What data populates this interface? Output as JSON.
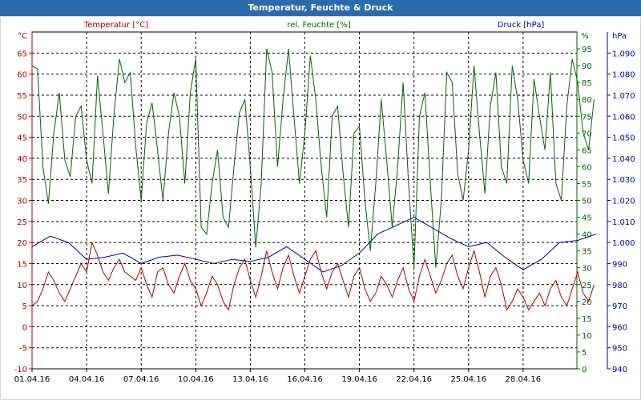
{
  "title": "Temperatur, Feuchte & Druck",
  "colors": {
    "temperature": "#b00000",
    "humidity": "#006400",
    "pressure": "#0000a0",
    "titlebar": "#2a6aad",
    "grid": "#000000"
  },
  "chart_data": {
    "type": "line",
    "x_tick_labels": [
      "01.04.16",
      "04.04.16",
      "07.04.16",
      "10.04.16",
      "13.04.16",
      "16.04.16",
      "19.04.16",
      "22.04.16",
      "25.04.16",
      "28.04.16"
    ],
    "x_range_days": [
      0,
      31
    ],
    "grid": true,
    "axes": {
      "left": {
        "label": "Temperatur [°C]",
        "unit": "°C",
        "range": [
          -10,
          70
        ],
        "ticks": [
          -10,
          -5,
          0,
          5,
          10,
          15,
          20,
          25,
          30,
          35,
          40,
          45,
          50,
          55,
          60,
          65
        ]
      },
      "mid": {
        "label": "rel. Feuchte [%]",
        "unit": "%",
        "range": [
          0,
          100
        ],
        "ticks": [
          0,
          5,
          10,
          15,
          20,
          25,
          30,
          35,
          40,
          45,
          50,
          55,
          60,
          65,
          70,
          75,
          80,
          85,
          90,
          95
        ]
      },
      "right": {
        "label": "Druck [hPa]",
        "unit": "hPa",
        "range": [
          940,
          1100
        ],
        "ticks": [
          "940",
          "950",
          "960",
          "970",
          "980",
          "990",
          "1.000",
          "1.010",
          "1.020",
          "1.030",
          "1.040",
          "1.050",
          "1.060",
          "1.070",
          "1.080",
          "1.090"
        ]
      }
    },
    "series": [
      {
        "name": "Temperatur [°C]",
        "axis": "left",
        "color": "#b00000",
        "day": [
          0,
          0.3,
          0.6,
          0.9,
          1.2,
          1.5,
          1.8,
          2.1,
          2.4,
          2.7,
          3.0,
          3.3,
          3.6,
          3.9,
          4.2,
          4.5,
          4.8,
          5.1,
          5.4,
          5.7,
          6.0,
          6.3,
          6.6,
          6.9,
          7.2,
          7.5,
          7.8,
          8.1,
          8.4,
          8.7,
          9.0,
          9.3,
          9.6,
          9.9,
          10.2,
          10.5,
          10.8,
          11.1,
          11.4,
          11.7,
          12.0,
          12.3,
          12.6,
          12.9,
          13.2,
          13.5,
          13.8,
          14.1,
          14.4,
          14.7,
          15.0,
          15.3,
          15.6,
          15.9,
          16.2,
          16.5,
          16.8,
          17.1,
          17.4,
          17.7,
          18.0,
          18.3,
          18.6,
          18.9,
          19.2,
          19.5,
          19.8,
          20.1,
          20.4,
          20.7,
          21.0,
          21.3,
          21.6,
          21.9,
          22.2,
          22.5,
          22.8,
          23.1,
          23.4,
          23.7,
          24.0,
          24.3,
          24.6,
          24.9,
          25.2,
          25.5,
          25.8,
          26.1,
          26.4,
          26.7,
          27.0,
          27.3,
          27.6,
          27.9,
          28.2,
          28.5,
          28.8,
          29.1,
          29.4,
          29.7,
          30.0,
          30.3,
          30.6,
          30.9
        ],
        "value": [
          5,
          6,
          9,
          13,
          11,
          8,
          6,
          9,
          12,
          15,
          13,
          20,
          17,
          13,
          11,
          14,
          16,
          13,
          12,
          11,
          14,
          10,
          7,
          13,
          14,
          10,
          8,
          12,
          15,
          11,
          9,
          5,
          8,
          12,
          10,
          6,
          4,
          10,
          14,
          16,
          11,
          7,
          12,
          18,
          13,
          9,
          14,
          17,
          12,
          8,
          12,
          16,
          18,
          13,
          9,
          13,
          15,
          11,
          7,
          12,
          14,
          9,
          6,
          8,
          12,
          10,
          7,
          11,
          14,
          9,
          6,
          12,
          16,
          12,
          8,
          11,
          15,
          17,
          12,
          9,
          14,
          18,
          13,
          7,
          12,
          14,
          10,
          4,
          6,
          9,
          7,
          4,
          6,
          8,
          5,
          9,
          11,
          7,
          5,
          9,
          13,
          8,
          6,
          10
        ],
        "style": "solid"
      },
      {
        "name": "rel. Feuchte [%]",
        "axis": "mid",
        "color": "#006400",
        "day": [
          0,
          0.3,
          0.6,
          0.9,
          1.2,
          1.5,
          1.8,
          2.1,
          2.4,
          2.7,
          3.0,
          3.3,
          3.6,
          3.9,
          4.2,
          4.5,
          4.8,
          5.1,
          5.4,
          5.7,
          6.0,
          6.3,
          6.6,
          6.9,
          7.2,
          7.5,
          7.8,
          8.1,
          8.4,
          8.7,
          9.0,
          9.3,
          9.6,
          9.9,
          10.2,
          10.5,
          10.8,
          11.1,
          11.4,
          11.7,
          12.0,
          12.3,
          12.6,
          12.9,
          13.2,
          13.5,
          13.8,
          14.1,
          14.4,
          14.7,
          15.0,
          15.3,
          15.6,
          15.9,
          16.2,
          16.5,
          16.8,
          17.1,
          17.4,
          17.7,
          18.0,
          18.3,
          18.6,
          18.9,
          19.2,
          19.5,
          19.8,
          20.1,
          20.4,
          20.7,
          21.0,
          21.3,
          21.6,
          21.9,
          22.2,
          22.5,
          22.8,
          23.1,
          23.4,
          23.7,
          24.0,
          24.3,
          24.6,
          24.9,
          25.2,
          25.5,
          25.8,
          26.1,
          26.4,
          26.7,
          27.0,
          27.3,
          27.6,
          27.9,
          28.2,
          28.5,
          28.8,
          29.1,
          29.4,
          29.7,
          30.0,
          30.3,
          30.6,
          30.9
        ],
        "value": [
          90,
          89,
          60,
          49,
          70,
          82,
          62,
          57,
          75,
          78,
          62,
          55,
          87,
          70,
          52,
          75,
          92,
          85,
          88,
          66,
          50,
          73,
          79,
          65,
          50,
          70,
          82,
          75,
          55,
          82,
          92,
          42,
          40,
          55,
          65,
          45,
          42,
          60,
          76,
          80,
          60,
          36,
          55,
          95,
          88,
          60,
          80,
          95,
          75,
          55,
          70,
          93,
          80,
          60,
          45,
          75,
          78,
          58,
          42,
          70,
          72,
          50,
          35,
          55,
          80,
          62,
          42,
          60,
          85,
          55,
          30,
          75,
          82,
          55,
          30,
          50,
          88,
          85,
          58,
          50,
          65,
          90,
          70,
          52,
          78,
          88,
          60,
          55,
          90,
          80,
          62,
          55,
          86,
          75,
          65,
          88,
          55,
          50,
          78,
          92,
          85,
          70,
          65,
          80
        ],
        "style": "solid"
      },
      {
        "name": "Druck [hPa]",
        "axis": "right",
        "color": "#0000a0",
        "day": [
          0,
          1,
          2,
          3,
          4,
          5,
          6,
          7,
          8,
          9,
          10,
          11,
          12,
          13,
          14,
          15,
          16,
          17,
          18,
          19,
          20,
          21,
          22,
          23,
          24,
          25,
          26,
          27,
          28,
          29,
          30,
          31
        ],
        "value": [
          998,
          1003,
          1000,
          992,
          993,
          995,
          990,
          993,
          994,
          992,
          990,
          992,
          991,
          993,
          998,
          992,
          986,
          989,
          995,
          1004,
          1008,
          1012,
          1007,
          1002,
          998,
          1000,
          993,
          987,
          992,
          1000,
          1001,
          1004
        ],
        "style": "solid"
      }
    ]
  }
}
